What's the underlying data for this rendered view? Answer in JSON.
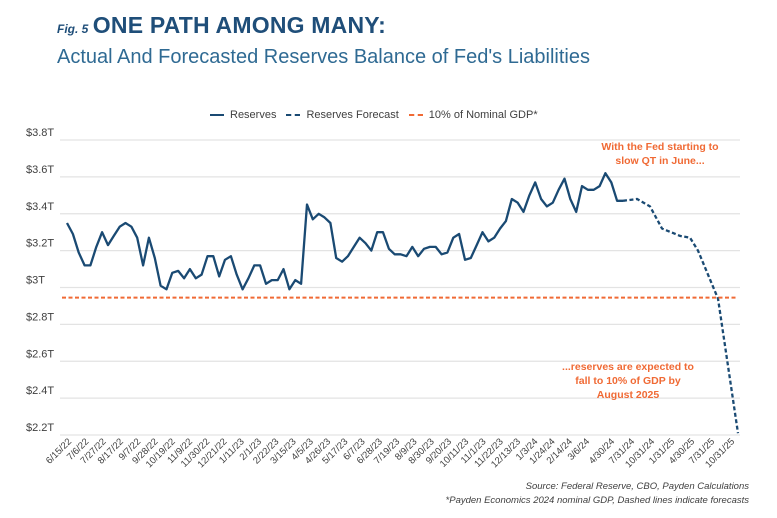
{
  "header": {
    "fig_label": "Fig. 5",
    "title": "ONE PATH AMONG MANY:",
    "subtitle": "Actual And Forecasted Reserves Balance of Fed's Liabilities"
  },
  "legend": {
    "items": [
      {
        "label": "Reserves",
        "style": "solid",
        "color": "#1a4a73"
      },
      {
        "label": "Reserves Forecast",
        "style": "dashed",
        "color": "#1a4a73"
      },
      {
        "label": "10% of Nominal GDP*",
        "style": "dashed",
        "color": "#f06a35"
      }
    ]
  },
  "footer": {
    "source": "Source: Federal Reserve, CBO, Payden Calculations",
    "note": "*Payden Economics 2024 nominal GDP, Dashed lines indicate forecasts"
  },
  "chart_data": {
    "type": "line",
    "title": "ONE PATH AMONG MANY: Actual And Forecasted Reserves Balance of Fed's Liabilities",
    "xlabel": "",
    "ylabel": "",
    "ylim": [
      2.2,
      3.8
    ],
    "y_unit": "trillions USD",
    "yticks": [
      3.8,
      3.6,
      3.4,
      3.2,
      3.0,
      2.8,
      2.6,
      2.4,
      2.2
    ],
    "ytick_labels": [
      "$3.8T",
      "$3.6T",
      "$3.4T",
      "$3.2T",
      "$3T",
      "$2.8T",
      "$2.6T",
      "$2.4T",
      "$2.2T"
    ],
    "grid": true,
    "legend_position": "top-center",
    "x_tick_labels": [
      "6/15/22",
      "7/6/22",
      "7/27/22",
      "8/17/22",
      "9/7/22",
      "9/28/22",
      "10/19/22",
      "11/9/22",
      "11/30/22",
      "12/21/22",
      "1/11/23",
      "2/1/23",
      "2/22/23",
      "3/15/23",
      "4/5/23",
      "4/26/23",
      "5/17/23",
      "6/7/23",
      "6/28/23",
      "7/19/23",
      "8/9/23",
      "8/30/23",
      "9/20/23",
      "10/11/23",
      "11/1/23",
      "11/22/23",
      "12/13/23",
      "1/3/24",
      "1/24/24",
      "2/14/24",
      "3/6/24",
      "4/30/24",
      "7/31/24",
      "10/31/24",
      "1/31/25",
      "4/30/25",
      "7/31/25",
      "10/31/25"
    ],
    "series": [
      {
        "name": "Reserves",
        "style": "solid",
        "color": "#1a4a73",
        "values": [
          3.35,
          3.29,
          3.19,
          3.12,
          3.12,
          3.22,
          3.3,
          3.23,
          3.28,
          3.33,
          3.35,
          3.33,
          3.27,
          3.12,
          3.27,
          3.16,
          3.01,
          2.99,
          3.08,
          3.09,
          3.05,
          3.1,
          3.05,
          3.07,
          3.17,
          3.17,
          3.06,
          3.15,
          3.17,
          3.07,
          2.99,
          3.05,
          3.12,
          3.12,
          3.02,
          3.04,
          3.04,
          3.1,
          2.99,
          3.04,
          3.02,
          3.45,
          3.37,
          3.4,
          3.38,
          3.35,
          3.16,
          3.14,
          3.17,
          3.22,
          3.27,
          3.24,
          3.2,
          3.3,
          3.3,
          3.21,
          3.18,
          3.18,
          3.17,
          3.22,
          3.17,
          3.21,
          3.22,
          3.22,
          3.18,
          3.19,
          3.27,
          3.29,
          3.15,
          3.16,
          3.23,
          3.3,
          3.25,
          3.27,
          3.32,
          3.36,
          3.48,
          3.46,
          3.41,
          3.5,
          3.57,
          3.48,
          3.44,
          3.46,
          3.53,
          3.59,
          3.48,
          3.41,
          3.55,
          3.53,
          3.53,
          3.55,
          3.62,
          3.57,
          3.47,
          3.47
        ]
      },
      {
        "name": "Reserves Forecast",
        "style": "dashed",
        "color": "#1a4a73",
        "points": [
          {
            "x_label": "4/30/24",
            "value": 3.47
          },
          {
            "x_label": "7/31/24",
            "value": 3.48
          },
          {
            "x_label": "9/15/24",
            "value": 3.44
          },
          {
            "x_label": "10/31/24",
            "value": 3.32
          },
          {
            "x_label": "1/31/25",
            "value": 3.28
          },
          {
            "x_label": "4/15/25",
            "value": 3.27
          },
          {
            "x_label": "5/31/25",
            "value": 3.2
          },
          {
            "x_label": "7/31/25",
            "value": 2.94
          },
          {
            "x_label": "10/31/25",
            "value": 2.21
          }
        ]
      },
      {
        "name": "10% of Nominal GDP*",
        "style": "dashed",
        "color": "#f06a35",
        "constant_value": 2.945
      }
    ],
    "annotations": [
      {
        "text_lines": [
          "With the Fed starting to",
          "slow QT in June..."
        ],
        "color": "#f06a35",
        "near": "top-right"
      },
      {
        "text_lines": [
          "...reserves are expected to",
          "fall to 10% of GDP by",
          "August 2025"
        ],
        "color": "#f06a35",
        "near": "bottom-right"
      }
    ]
  }
}
